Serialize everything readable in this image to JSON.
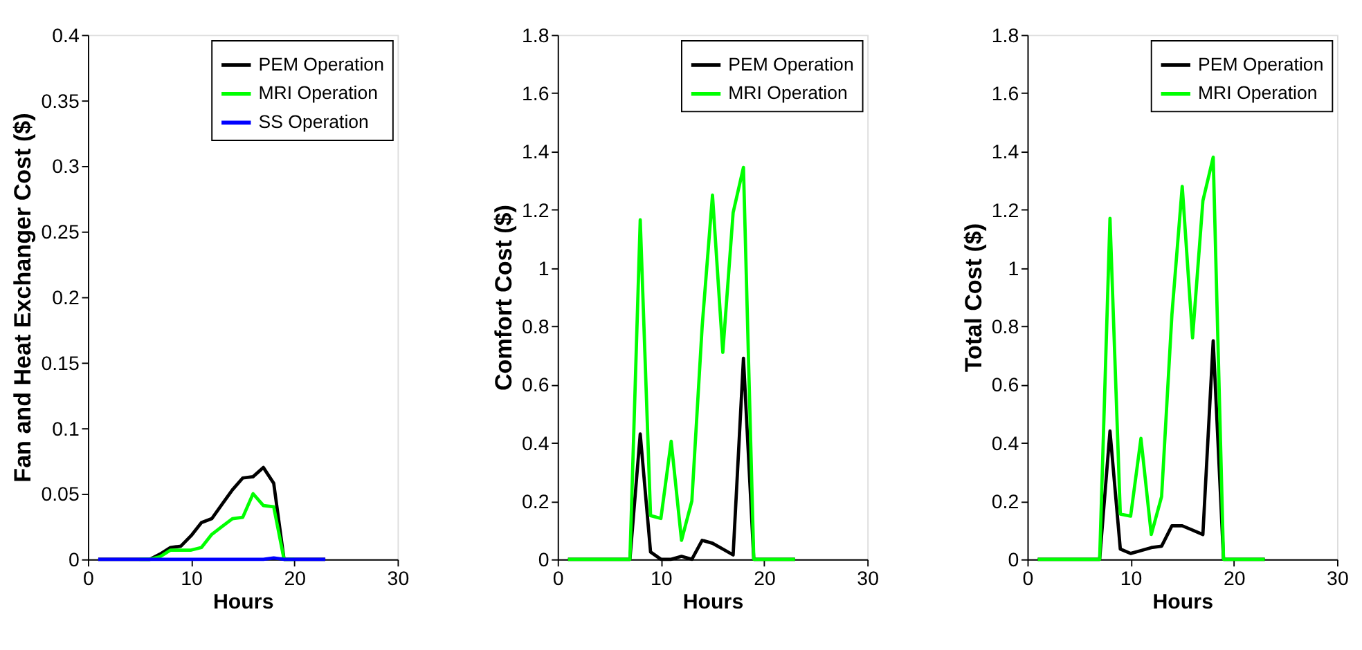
{
  "chart_data": [
    {
      "type": "line",
      "xlabel": "Hours",
      "ylabel": "Fan and Heat Exchanger Cost ($)",
      "x": [
        1,
        2,
        3,
        4,
        5,
        6,
        7,
        8,
        9,
        10,
        11,
        12,
        13,
        14,
        15,
        16,
        17,
        18,
        19,
        20,
        21,
        22,
        23
      ],
      "xlim": [
        0,
        30
      ],
      "xticks": [
        0,
        10,
        20,
        30
      ],
      "ylim": [
        0,
        0.4
      ],
      "yticks": [
        0,
        0.05,
        0.1,
        0.15,
        0.2,
        0.25,
        0.3,
        0.35,
        0.4
      ],
      "grid": false,
      "legend": "top right",
      "marker": "none",
      "line_style": "solid",
      "series": [
        {
          "name": "PEM Operation",
          "color": "#000000",
          "values": [
            0,
            0,
            0,
            0,
            0,
            0,
            0.004,
            0.009,
            0.01,
            0.018,
            0.028,
            0.031,
            0.042,
            0.053,
            0.062,
            0.063,
            0.07,
            0.058,
            0,
            0,
            0,
            0,
            0
          ]
        },
        {
          "name": "MRI Operation",
          "color": "#00ff00",
          "values": [
            null,
            null,
            null,
            null,
            0,
            0,
            0.002,
            0.007,
            0.007,
            0.007,
            0.009,
            0.019,
            0.025,
            0.031,
            0.032,
            0.05,
            0.041,
            0.04,
            0,
            0,
            null,
            null,
            null
          ]
        },
        {
          "name": "SS Operation",
          "color": "#0000ff",
          "values": [
            0,
            0,
            0,
            0,
            0,
            0,
            0,
            0,
            0,
            0,
            0,
            0,
            0,
            0,
            0,
            0,
            0,
            0.001,
            0,
            0,
            0,
            0,
            0
          ]
        }
      ]
    },
    {
      "type": "line",
      "xlabel": "Hours",
      "ylabel": "Comfort Cost ($)",
      "x": [
        1,
        2,
        3,
        4,
        5,
        6,
        7,
        8,
        9,
        10,
        11,
        12,
        13,
        14,
        15,
        16,
        17,
        18,
        19,
        20,
        21,
        22,
        23
      ],
      "xlim": [
        0,
        30
      ],
      "xticks": [
        0,
        10,
        20,
        30
      ],
      "ylim": [
        0,
        1.8
      ],
      "yticks": [
        0,
        0.2,
        0.4,
        0.6,
        0.8,
        1,
        1.2,
        1.4,
        1.6,
        1.8
      ],
      "grid": false,
      "legend": "top right",
      "marker": "none",
      "line_style": "solid",
      "series": [
        {
          "name": "PEM Operation",
          "color": "#000000",
          "values": [
            0,
            0,
            0,
            0,
            0,
            0,
            0,
            0.43,
            0.025,
            0,
            0,
            0.01,
            0,
            0.065,
            0.055,
            0.035,
            0.015,
            0.69,
            0,
            0,
            0,
            0,
            0
          ]
        },
        {
          "name": "MRI Operation",
          "color": "#00ff00",
          "values": [
            0,
            0,
            0,
            0,
            0,
            0,
            0,
            1.165,
            0.15,
            0.14,
            0.405,
            0.065,
            0.2,
            0.8,
            1.25,
            0.71,
            1.19,
            1.345,
            0,
            0,
            0,
            0,
            0
          ]
        }
      ]
    },
    {
      "type": "line",
      "xlabel": "Hours",
      "ylabel": "Total Cost ($)",
      "x": [
        1,
        2,
        3,
        4,
        5,
        6,
        7,
        8,
        9,
        10,
        11,
        12,
        13,
        14,
        15,
        16,
        17,
        18,
        19,
        20,
        21,
        22,
        23
      ],
      "xlim": [
        0,
        30
      ],
      "xticks": [
        0,
        10,
        20,
        30
      ],
      "ylim": [
        0,
        1.8
      ],
      "yticks": [
        0,
        0.2,
        0.4,
        0.6,
        0.8,
        1,
        1.2,
        1.4,
        1.6,
        1.8
      ],
      "grid": false,
      "legend": "top right",
      "marker": "none",
      "line_style": "solid",
      "series": [
        {
          "name": "PEM Operation",
          "color": "#000000",
          "values": [
            0,
            0,
            0,
            0,
            0,
            0,
            0,
            0.44,
            0.035,
            0.02,
            0.03,
            0.04,
            0.045,
            0.115,
            0.115,
            0.1,
            0.085,
            0.75,
            0,
            0,
            0,
            0,
            0
          ]
        },
        {
          "name": "MRI Operation",
          "color": "#00ff00",
          "values": [
            0,
            0,
            0,
            0,
            0,
            0,
            0,
            1.17,
            0.155,
            0.148,
            0.415,
            0.085,
            0.215,
            0.84,
            1.28,
            0.76,
            1.23,
            1.38,
            0,
            0,
            0,
            0,
            0
          ]
        }
      ]
    }
  ]
}
